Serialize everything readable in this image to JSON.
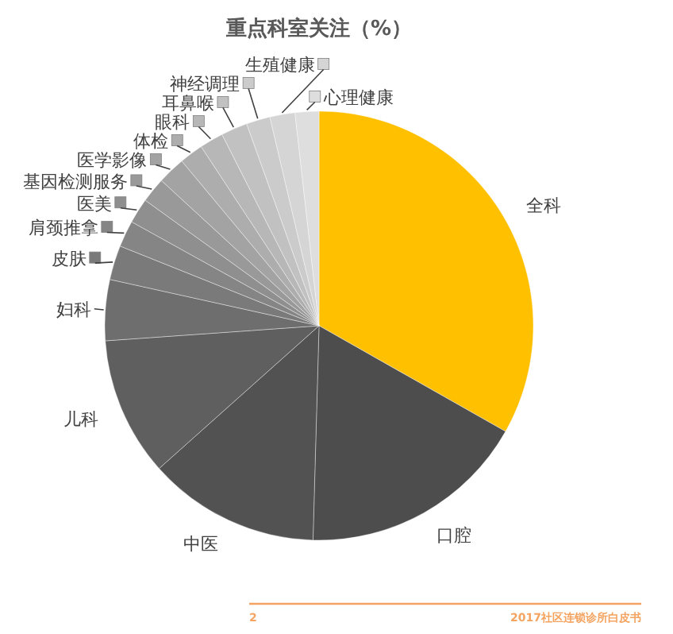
{
  "chart_data": {
    "type": "pie",
    "title": "重点科室关注（%）",
    "categories": [
      "全科",
      "口腔",
      "中医",
      "儿科",
      "妇科",
      "皮肤",
      "肩颈推拿",
      "医美",
      "基因检测服务",
      "医学影像",
      "体检",
      "眼科",
      "耳鼻喉",
      "神经调理",
      "生殖健康",
      "心理健康"
    ],
    "values": [
      33.3,
      17.3,
      13,
      10.5,
      4.6,
      2.6,
      2,
      1.9,
      1.9,
      2.1,
      1.8,
      1.8,
      2,
      1.8,
      1.9,
      1.8
    ],
    "colors": [
      "#ffc000",
      "#4d4d4d",
      "#525252",
      "#5f5f5f",
      "#6e6e6e",
      "#7a7a7a",
      "#858585",
      "#8f8f8f",
      "#999999",
      "#a3a3a3",
      "#adadad",
      "#b7b7b7",
      "#c1c1c1",
      "#cbcbcb",
      "#d5d5d5",
      "#dedede"
    ],
    "legend": "top left",
    "annotations": [
      "2",
      "2017社区连锁诊所白皮书"
    ]
  }
}
